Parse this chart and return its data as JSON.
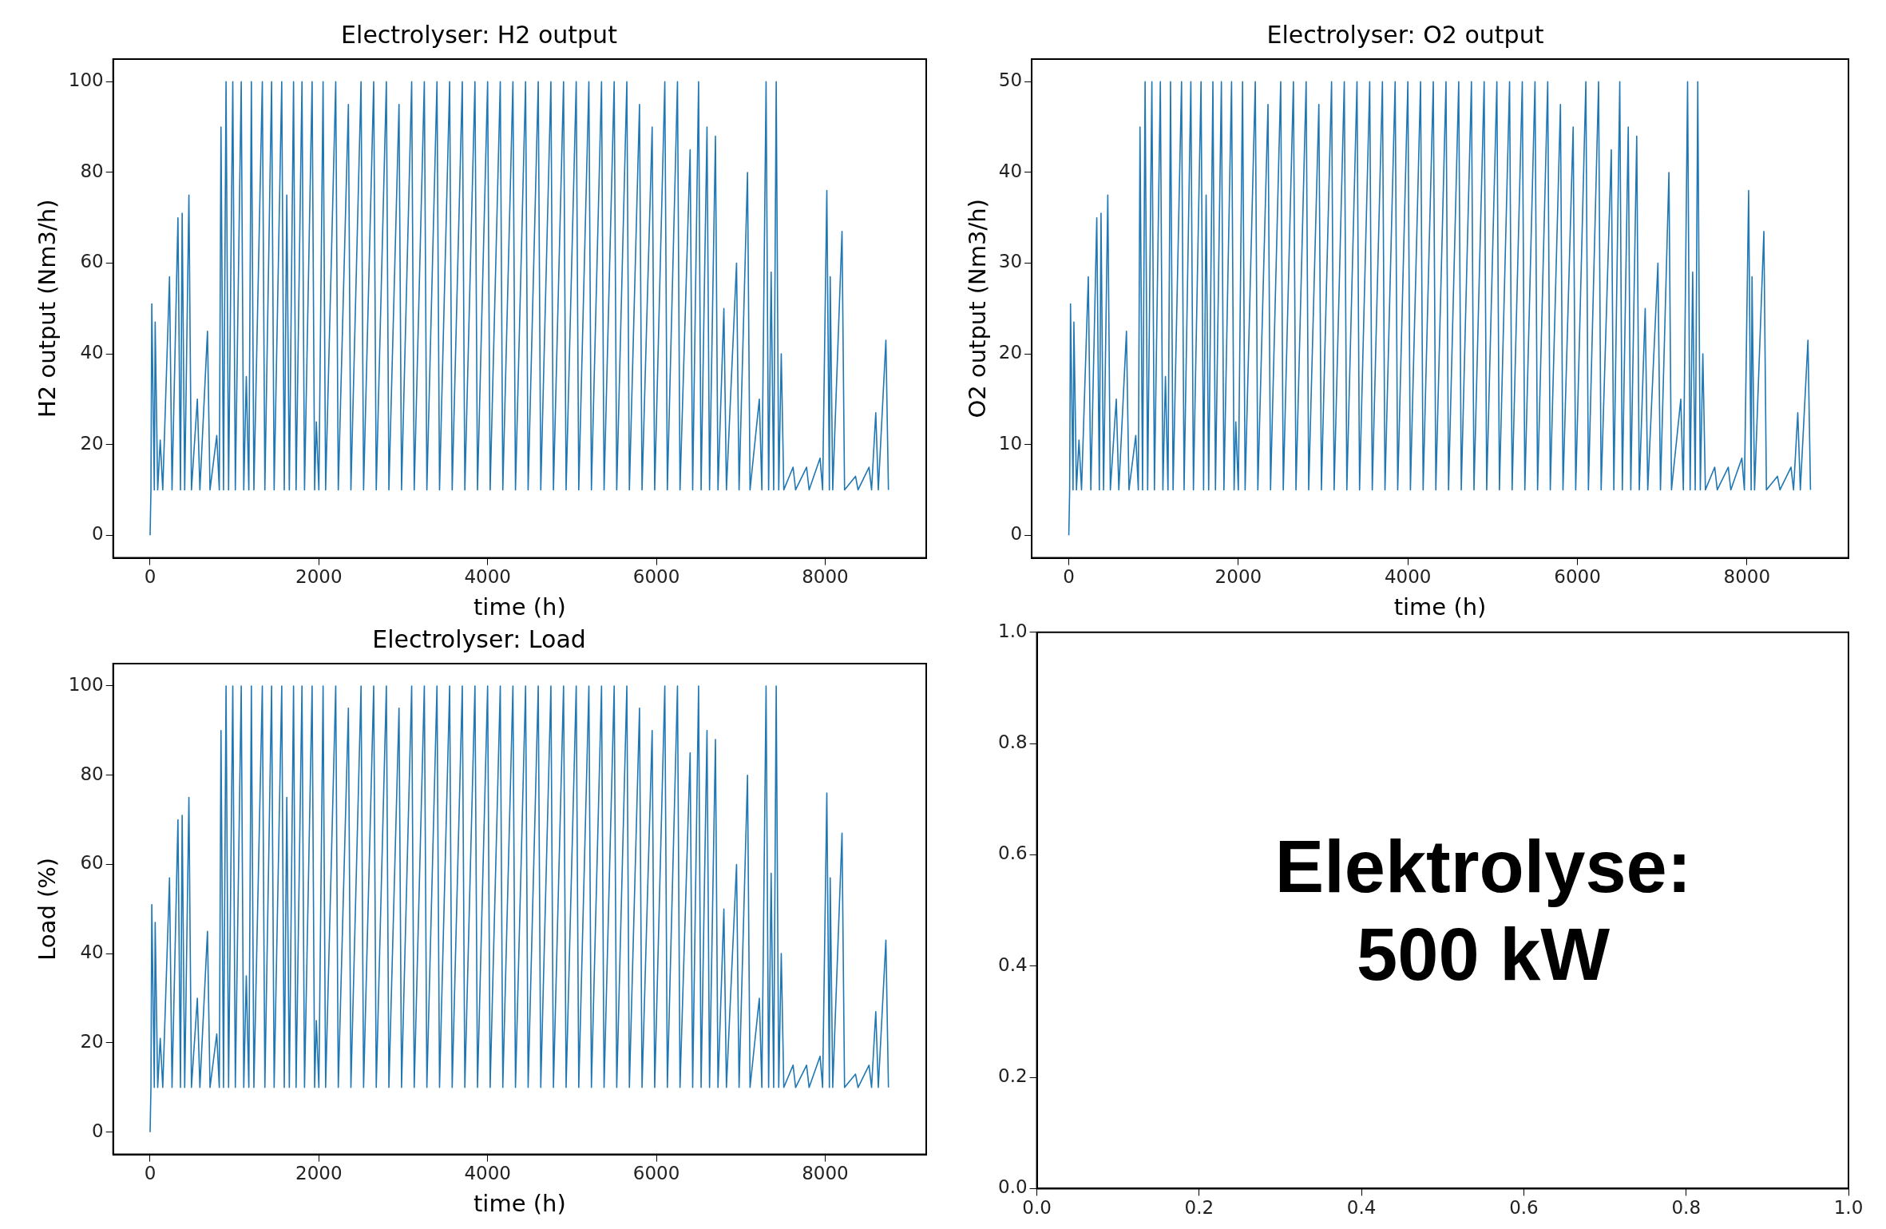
{
  "chart_data": [
    {
      "type": "line",
      "title": "Electrolyser: H2 output",
      "xlabel": "time (h)",
      "ylabel": "H2 output (Nm3/h)",
      "grid": false,
      "xlim": [
        -438,
        9198
      ],
      "ylim": [
        -5,
        105
      ],
      "xticks": [
        0,
        2000,
        4000,
        6000,
        8000
      ],
      "yticks": [
        0,
        20,
        40,
        60,
        80,
        100
      ],
      "x": [
        0,
        10,
        20,
        50,
        60,
        90,
        120,
        150,
        230,
        260,
        330,
        360,
        380,
        410,
        460,
        490,
        560,
        590,
        680,
        710,
        790,
        820,
        840,
        870,
        900,
        930,
        980,
        1010,
        1080,
        1110,
        1140,
        1170,
        1200,
        1230,
        1330,
        1360,
        1440,
        1470,
        1560,
        1590,
        1620,
        1650,
        1700,
        1730,
        1800,
        1830,
        1920,
        1950,
        1970,
        2000,
        2050,
        2080,
        2200,
        2230,
        2350,
        2380,
        2500,
        2530,
        2650,
        2680,
        2800,
        2830,
        2950,
        2980,
        3100,
        3130,
        3250,
        3280,
        3400,
        3430,
        3550,
        3580,
        3700,
        3730,
        3850,
        3880,
        4000,
        4030,
        4150,
        4180,
        4300,
        4330,
        4450,
        4480,
        4600,
        4630,
        4750,
        4780,
        4900,
        4930,
        5050,
        5080,
        5200,
        5230,
        5350,
        5380,
        5500,
        5530,
        5650,
        5680,
        5800,
        5830,
        5950,
        5980,
        6100,
        6130,
        6250,
        6280,
        6400,
        6430,
        6500,
        6530,
        6600,
        6630,
        6700,
        6730,
        6800,
        6830,
        6950,
        6980,
        7080,
        7110,
        7220,
        7250,
        7300,
        7330,
        7360,
        7390,
        7420,
        7450,
        7480,
        7510,
        7620,
        7650,
        7780,
        7810,
        7940,
        7970,
        8020,
        8050,
        8060,
        8090,
        8200,
        8230,
        8360,
        8390,
        8520,
        8550,
        8600,
        8630,
        8720,
        8750
      ],
      "series": [
        {
          "color": "#1f77b4",
          "values": [
            0,
            10,
            51,
            10,
            47,
            10,
            21,
            10,
            57,
            10,
            70,
            10,
            71,
            10,
            75,
            10,
            30,
            10,
            45,
            10,
            22,
            10,
            90,
            10,
            100,
            10,
            100,
            10,
            100,
            10,
            35,
            10,
            100,
            10,
            100,
            10,
            100,
            10,
            100,
            10,
            75,
            10,
            100,
            10,
            100,
            10,
            100,
            10,
            25,
            10,
            100,
            10,
            100,
            10,
            95,
            10,
            100,
            10,
            100,
            10,
            100,
            10,
            95,
            10,
            100,
            10,
            100,
            10,
            100,
            10,
            100,
            10,
            100,
            10,
            100,
            10,
            100,
            10,
            100,
            10,
            100,
            10,
            100,
            10,
            100,
            10,
            100,
            10,
            100,
            10,
            100,
            10,
            100,
            10,
            100,
            10,
            100,
            10,
            100,
            10,
            95,
            10,
            90,
            10,
            100,
            10,
            100,
            10,
            85,
            10,
            100,
            10,
            90,
            10,
            88,
            10,
            50,
            10,
            60,
            10,
            80,
            10,
            30,
            10,
            100,
            10,
            58,
            10,
            100,
            10,
            40,
            10,
            15,
            10,
            15,
            10,
            17,
            10,
            76,
            10,
            57,
            10,
            67,
            10,
            13,
            10,
            15,
            10,
            27,
            10,
            43,
            10
          ]
        }
      ]
    },
    {
      "type": "line",
      "title": "Electrolyser: O2 output",
      "xlabel": "time (h)",
      "ylabel": "O2 output (Nm3/h)",
      "grid": false,
      "xlim": [
        -438,
        9198
      ],
      "ylim": [
        -2.5,
        52.5
      ],
      "xticks": [
        0,
        2000,
        4000,
        6000,
        8000
      ],
      "yticks": [
        0,
        10,
        20,
        30,
        40,
        50
      ],
      "x": [
        0,
        10,
        20,
        50,
        60,
        90,
        120,
        150,
        230,
        260,
        330,
        360,
        380,
        410,
        460,
        490,
        560,
        590,
        680,
        710,
        790,
        820,
        840,
        870,
        900,
        930,
        980,
        1010,
        1080,
        1110,
        1140,
        1170,
        1200,
        1230,
        1330,
        1360,
        1440,
        1470,
        1560,
        1590,
        1620,
        1650,
        1700,
        1730,
        1800,
        1830,
        1920,
        1950,
        1970,
        2000,
        2050,
        2080,
        2200,
        2230,
        2350,
        2380,
        2500,
        2530,
        2650,
        2680,
        2800,
        2830,
        2950,
        2980,
        3100,
        3130,
        3250,
        3280,
        3400,
        3430,
        3550,
        3580,
        3700,
        3730,
        3850,
        3880,
        4000,
        4030,
        4150,
        4180,
        4300,
        4330,
        4450,
        4480,
        4600,
        4630,
        4750,
        4780,
        4900,
        4930,
        5050,
        5080,
        5200,
        5230,
        5350,
        5380,
        5500,
        5530,
        5650,
        5680,
        5800,
        5830,
        5950,
        5980,
        6100,
        6130,
        6250,
        6280,
        6400,
        6430,
        6500,
        6530,
        6600,
        6630,
        6700,
        6730,
        6800,
        6830,
        6950,
        6980,
        7080,
        7110,
        7220,
        7250,
        7300,
        7330,
        7360,
        7390,
        7420,
        7450,
        7480,
        7510,
        7620,
        7650,
        7780,
        7810,
        7940,
        7970,
        8020,
        8050,
        8060,
        8090,
        8200,
        8230,
        8360,
        8390,
        8520,
        8550,
        8600,
        8630,
        8720,
        8750
      ],
      "series": [
        {
          "color": "#1f77b4",
          "values": [
            0,
            5,
            25.5,
            5,
            23.5,
            5,
            10.5,
            5,
            28.5,
            5,
            35,
            5,
            35.5,
            5,
            37.5,
            5,
            15,
            5,
            22.5,
            5,
            11,
            5,
            45,
            5,
            50,
            5,
            50,
            5,
            50,
            5,
            17.5,
            5,
            50,
            5,
            50,
            5,
            50,
            5,
            50,
            5,
            37.5,
            5,
            50,
            5,
            50,
            5,
            50,
            5,
            12.5,
            5,
            50,
            5,
            50,
            5,
            47.5,
            5,
            50,
            5,
            50,
            5,
            50,
            5,
            47.5,
            5,
            50,
            5,
            50,
            5,
            50,
            5,
            50,
            5,
            50,
            5,
            50,
            5,
            50,
            5,
            50,
            5,
            50,
            5,
            50,
            5,
            50,
            5,
            50,
            5,
            50,
            5,
            50,
            5,
            50,
            5,
            50,
            5,
            50,
            5,
            50,
            5,
            47.5,
            5,
            45,
            5,
            50,
            5,
            50,
            5,
            42.5,
            5,
            50,
            5,
            45,
            5,
            44,
            5,
            25,
            5,
            30,
            5,
            40,
            5,
            15,
            5,
            50,
            5,
            29,
            5,
            50,
            5,
            20,
            5,
            7.5,
            5,
            7.5,
            5,
            8.5,
            5,
            38,
            5,
            28.5,
            5,
            33.5,
            5,
            6.5,
            5,
            7.5,
            5,
            13.5,
            5,
            21.5,
            5
          ]
        }
      ]
    },
    {
      "type": "line",
      "title": "Electrolyser: Load",
      "xlabel": "time (h)",
      "ylabel": "Load (%)",
      "grid": false,
      "xlim": [
        -438,
        9198
      ],
      "ylim": [
        -5,
        105
      ],
      "xticks": [
        0,
        2000,
        4000,
        6000,
        8000
      ],
      "yticks": [
        0,
        20,
        40,
        60,
        80,
        100
      ],
      "x": [
        0,
        10,
        20,
        50,
        60,
        90,
        120,
        150,
        230,
        260,
        330,
        360,
        380,
        410,
        460,
        490,
        560,
        590,
        680,
        710,
        790,
        820,
        840,
        870,
        900,
        930,
        980,
        1010,
        1080,
        1110,
        1140,
        1170,
        1200,
        1230,
        1330,
        1360,
        1440,
        1470,
        1560,
        1590,
        1620,
        1650,
        1700,
        1730,
        1800,
        1830,
        1920,
        1950,
        1970,
        2000,
        2050,
        2080,
        2200,
        2230,
        2350,
        2380,
        2500,
        2530,
        2650,
        2680,
        2800,
        2830,
        2950,
        2980,
        3100,
        3130,
        3250,
        3280,
        3400,
        3430,
        3550,
        3580,
        3700,
        3730,
        3850,
        3880,
        4000,
        4030,
        4150,
        4180,
        4300,
        4330,
        4450,
        4480,
        4600,
        4630,
        4750,
        4780,
        4900,
        4930,
        5050,
        5080,
        5200,
        5230,
        5350,
        5380,
        5500,
        5530,
        5650,
        5680,
        5800,
        5830,
        5950,
        5980,
        6100,
        6130,
        6250,
        6280,
        6400,
        6430,
        6500,
        6530,
        6600,
        6630,
        6700,
        6730,
        6800,
        6830,
        6950,
        6980,
        7080,
        7110,
        7220,
        7250,
        7300,
        7330,
        7360,
        7390,
        7420,
        7450,
        7480,
        7510,
        7620,
        7650,
        7780,
        7810,
        7940,
        7970,
        8020,
        8050,
        8060,
        8090,
        8200,
        8230,
        8360,
        8390,
        8520,
        8550,
        8600,
        8630,
        8720,
        8750
      ],
      "series": [
        {
          "color": "#1f77b4",
          "values": [
            0,
            10,
            51,
            10,
            47,
            10,
            21,
            10,
            57,
            10,
            70,
            10,
            71,
            10,
            75,
            10,
            30,
            10,
            45,
            10,
            22,
            10,
            90,
            10,
            100,
            10,
            100,
            10,
            100,
            10,
            35,
            10,
            100,
            10,
            100,
            10,
            100,
            10,
            100,
            10,
            75,
            10,
            100,
            10,
            100,
            10,
            100,
            10,
            25,
            10,
            100,
            10,
            100,
            10,
            95,
            10,
            100,
            10,
            100,
            10,
            100,
            10,
            95,
            10,
            100,
            10,
            100,
            10,
            100,
            10,
            100,
            10,
            100,
            10,
            100,
            10,
            100,
            10,
            100,
            10,
            100,
            10,
            100,
            10,
            100,
            10,
            100,
            10,
            100,
            10,
            100,
            10,
            100,
            10,
            100,
            10,
            100,
            10,
            100,
            10,
            95,
            10,
            90,
            10,
            100,
            10,
            100,
            10,
            85,
            10,
            100,
            10,
            90,
            10,
            88,
            10,
            50,
            10,
            60,
            10,
            80,
            10,
            30,
            10,
            100,
            10,
            58,
            10,
            100,
            10,
            40,
            10,
            15,
            10,
            15,
            10,
            17,
            10,
            76,
            10,
            57,
            10,
            67,
            10,
            13,
            10,
            15,
            10,
            27,
            10,
            43,
            10
          ]
        }
      ]
    },
    {
      "type": "line",
      "grid": false,
      "xlim": [
        0,
        1
      ],
      "ylim": [
        0,
        1
      ],
      "xticks": [
        {
          "value": 0,
          "label": "0.0"
        },
        0.2,
        0.4,
        0.6,
        0.8,
        {
          "value": 1,
          "label": "1.0"
        }
      ],
      "yticks": [
        {
          "value": 0,
          "label": "0.0"
        },
        0.2,
        0.4,
        0.6,
        0.8,
        {
          "value": 1,
          "label": "1.0"
        }
      ],
      "annotations": [
        "Elektrolyse: 500 kW"
      ]
    }
  ]
}
